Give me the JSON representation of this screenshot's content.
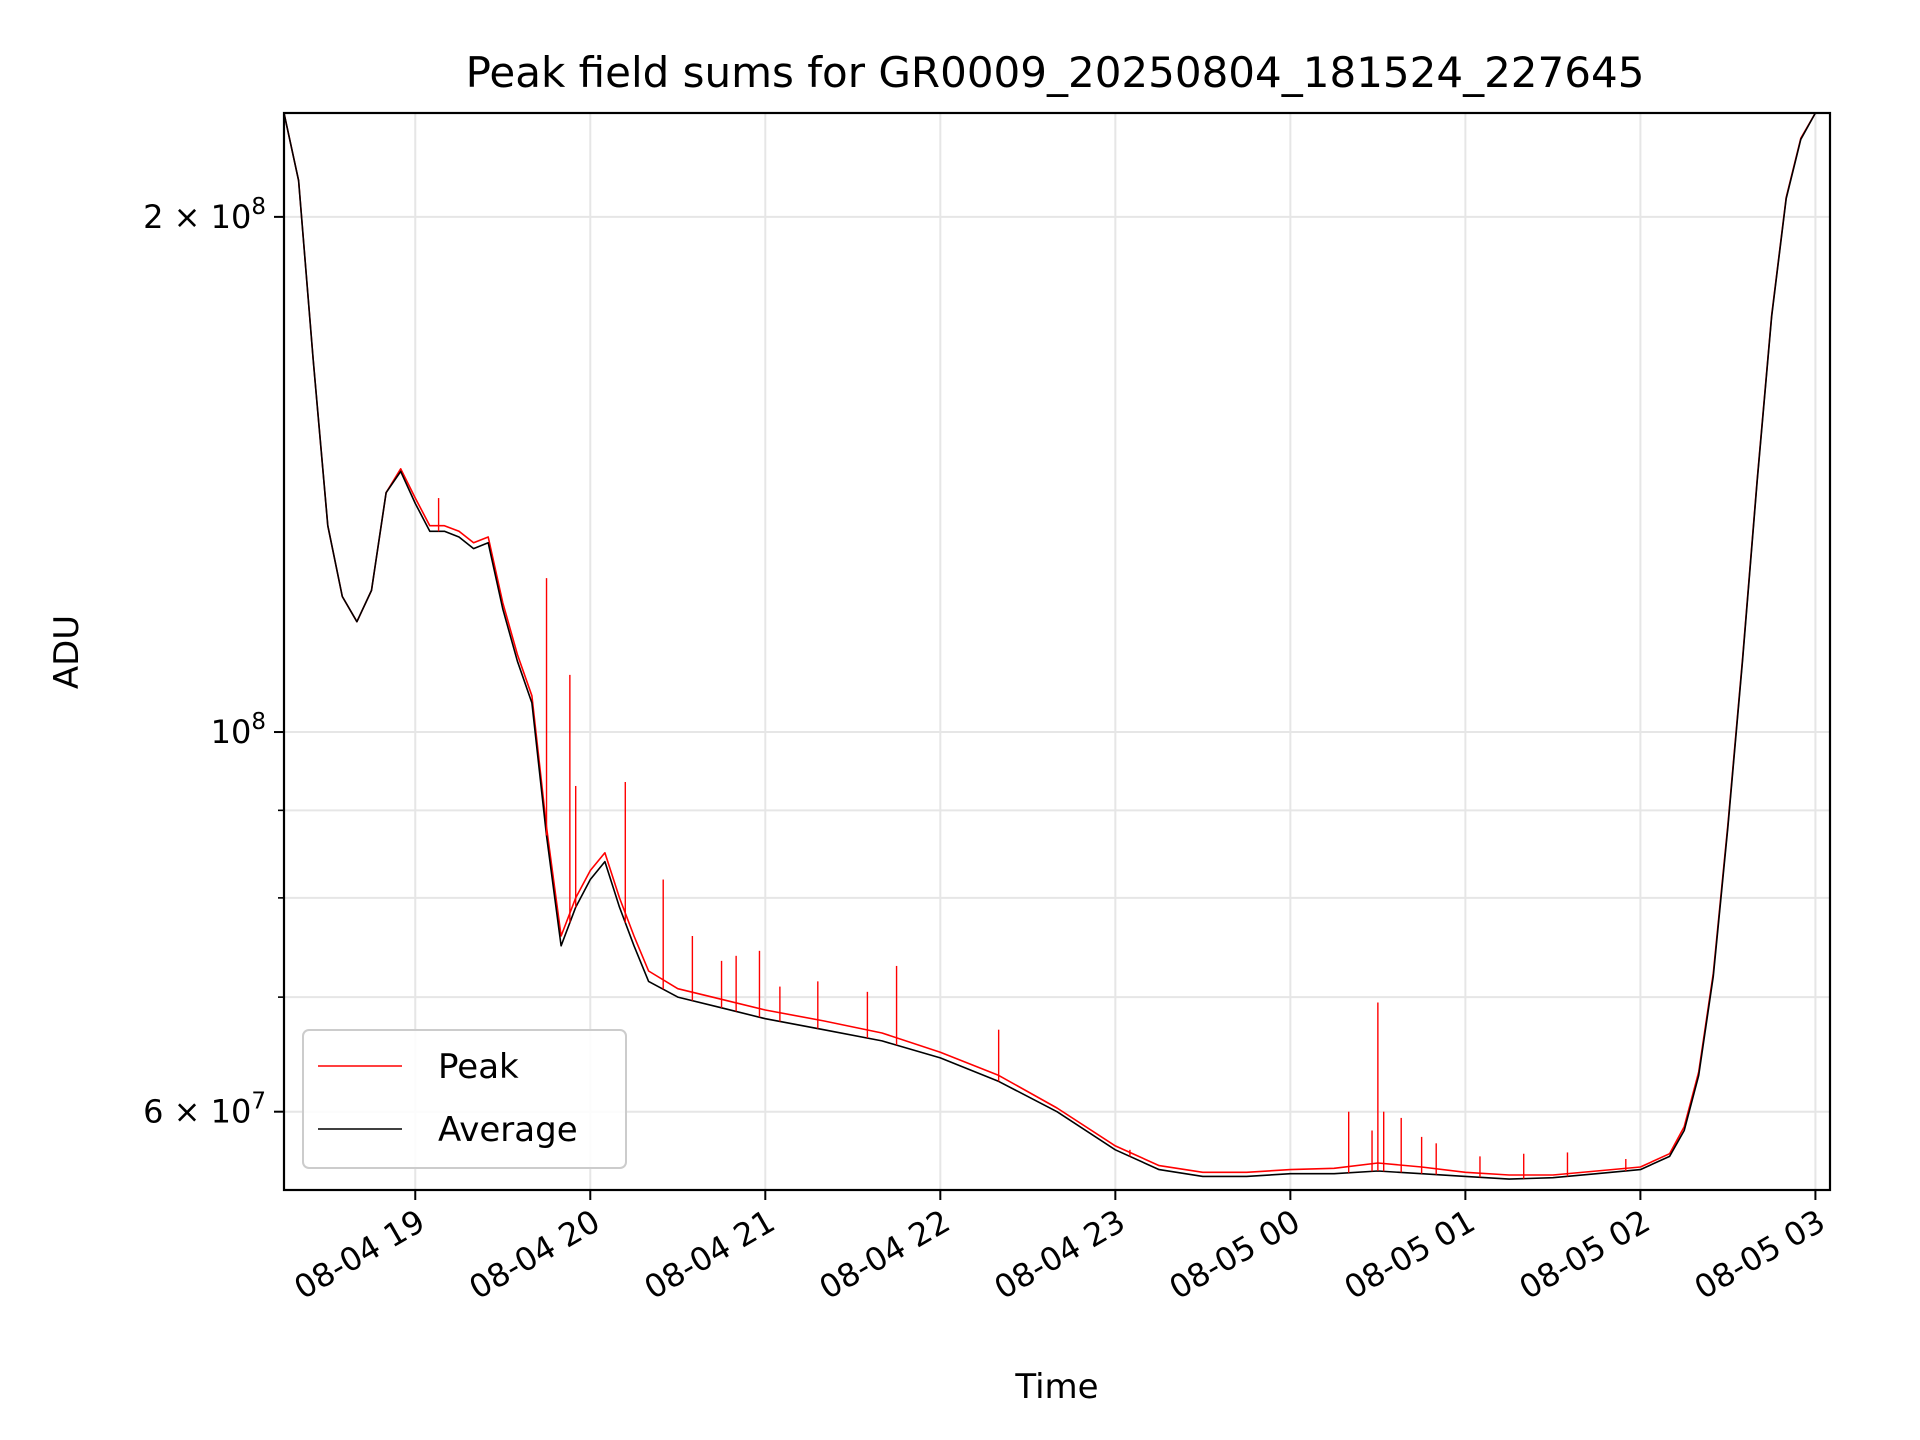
{
  "chart_data": {
    "type": "line",
    "title": "Peak field sums for GR0009_20250804_181524_227645",
    "xlabel": "Time",
    "ylabel": "ADU",
    "y_scale": "log",
    "grid": true,
    "legend_position": "lower-left",
    "xlim": [
      "2025-08-04 18:15",
      "2025-08-05 03:05"
    ],
    "ylim": [
      54000000,
      230000000
    ],
    "x_ticks": [
      {
        "t": "2025-08-04 19:00",
        "label": "08-04 19"
      },
      {
        "t": "2025-08-04 20:00",
        "label": "08-04 20"
      },
      {
        "t": "2025-08-04 21:00",
        "label": "08-04 21"
      },
      {
        "t": "2025-08-04 22:00",
        "label": "08-04 22"
      },
      {
        "t": "2025-08-04 23:00",
        "label": "08-04 23"
      },
      {
        "t": "2025-08-05 00:00",
        "label": "08-05 00"
      },
      {
        "t": "2025-08-05 01:00",
        "label": "08-05 01"
      },
      {
        "t": "2025-08-05 02:00",
        "label": "08-05 02"
      },
      {
        "t": "2025-08-05 03:00",
        "label": "08-05 03"
      }
    ],
    "y_ticks_major": [
      {
        "value": 60000000,
        "label": "6 × 10",
        "exp": "7"
      },
      {
        "value": 100000000,
        "label": "10",
        "exp": "8"
      },
      {
        "value": 200000000,
        "label": "2 × 10",
        "exp": "8"
      }
    ],
    "y_ticks_minor": [
      70000000,
      80000000,
      90000000
    ],
    "colors": {
      "Peak": "#ff0000",
      "Average": "#000000"
    },
    "series": [
      {
        "name": "Average",
        "x": [
          "2025-08-04 18:15",
          "2025-08-04 18:20",
          "2025-08-04 18:25",
          "2025-08-04 18:30",
          "2025-08-04 18:35",
          "2025-08-04 18:40",
          "2025-08-04 18:45",
          "2025-08-04 18:50",
          "2025-08-04 18:55",
          "2025-08-04 19:00",
          "2025-08-04 19:05",
          "2025-08-04 19:10",
          "2025-08-04 19:15",
          "2025-08-04 19:20",
          "2025-08-04 19:25",
          "2025-08-04 19:30",
          "2025-08-04 19:35",
          "2025-08-04 19:40",
          "2025-08-04 19:45",
          "2025-08-04 19:50",
          "2025-08-04 19:55",
          "2025-08-04 20:00",
          "2025-08-04 20:05",
          "2025-08-04 20:10",
          "2025-08-04 20:15",
          "2025-08-04 20:20",
          "2025-08-04 20:30",
          "2025-08-04 20:45",
          "2025-08-04 21:00",
          "2025-08-04 21:20",
          "2025-08-04 21:40",
          "2025-08-04 22:00",
          "2025-08-04 22:20",
          "2025-08-04 22:40",
          "2025-08-04 23:00",
          "2025-08-04 23:15",
          "2025-08-04 23:30",
          "2025-08-04 23:45",
          "2025-08-05 00:00",
          "2025-08-05 00:15",
          "2025-08-05 00:30",
          "2025-08-05 00:45",
          "2025-08-05 01:00",
          "2025-08-05 01:15",
          "2025-08-05 01:30",
          "2025-08-05 01:45",
          "2025-08-05 02:00",
          "2025-08-05 02:10",
          "2025-08-05 02:15",
          "2025-08-05 02:20",
          "2025-08-05 02:25",
          "2025-08-05 02:30",
          "2025-08-05 02:35",
          "2025-08-05 02:40",
          "2025-08-05 02:45",
          "2025-08-05 02:50",
          "2025-08-05 02:55",
          "2025-08-05 03:00"
        ],
        "y": [
          230000000,
          210000000,
          165000000,
          132000000,
          120000000,
          116000000,
          121000000,
          138000000,
          142000000,
          136000000,
          131000000,
          131000000,
          130000000,
          128000000,
          129000000,
          118000000,
          110000000,
          104000000,
          87000000,
          75000000,
          79000000,
          82000000,
          84000000,
          79000000,
          75000000,
          71500000,
          70000000,
          69000000,
          68000000,
          67000000,
          66000000,
          64500000,
          62500000,
          60000000,
          57000000,
          55500000,
          55000000,
          55000000,
          55200000,
          55200000,
          55400000,
          55200000,
          55000000,
          54800000,
          54900000,
          55200000,
          55500000,
          56500000,
          58500000,
          63000000,
          72000000,
          88000000,
          110000000,
          140000000,
          175000000,
          205000000,
          222000000,
          230000000
        ]
      },
      {
        "name": "Peak",
        "x": [
          "2025-08-04 18:15",
          "2025-08-04 18:20",
          "2025-08-04 18:25",
          "2025-08-04 18:30",
          "2025-08-04 18:35",
          "2025-08-04 18:40",
          "2025-08-04 18:45",
          "2025-08-04 18:50",
          "2025-08-04 18:55",
          "2025-08-04 19:00",
          "2025-08-04 19:05",
          "2025-08-04 19:10",
          "2025-08-04 19:15",
          "2025-08-04 19:20",
          "2025-08-04 19:25",
          "2025-08-04 19:30",
          "2025-08-04 19:35",
          "2025-08-04 19:40",
          "2025-08-04 19:45",
          "2025-08-04 19:50",
          "2025-08-04 19:55",
          "2025-08-04 20:00",
          "2025-08-04 20:05",
          "2025-08-04 20:10",
          "2025-08-04 20:15",
          "2025-08-04 20:20",
          "2025-08-04 20:30",
          "2025-08-04 20:45",
          "2025-08-04 21:00",
          "2025-08-04 21:20",
          "2025-08-04 21:40",
          "2025-08-04 22:00",
          "2025-08-04 22:20",
          "2025-08-04 22:40",
          "2025-08-04 23:00",
          "2025-08-04 23:15",
          "2025-08-04 23:30",
          "2025-08-04 23:45",
          "2025-08-05 00:00",
          "2025-08-05 00:15",
          "2025-08-05 00:30",
          "2025-08-05 00:45",
          "2025-08-05 01:00",
          "2025-08-05 01:15",
          "2025-08-05 01:30",
          "2025-08-05 01:45",
          "2025-08-05 02:00",
          "2025-08-05 02:10",
          "2025-08-05 02:15",
          "2025-08-05 02:20",
          "2025-08-05 02:25",
          "2025-08-05 02:30",
          "2025-08-05 02:35",
          "2025-08-05 02:40",
          "2025-08-05 02:45",
          "2025-08-05 02:50",
          "2025-08-05 02:55",
          "2025-08-05 03:00"
        ],
        "y": [
          230000000,
          210000000,
          165000000,
          132000000,
          120000000,
          116000000,
          121000000,
          138000000,
          142500000,
          137000000,
          132000000,
          132000000,
          131000000,
          129000000,
          130000000,
          119000000,
          111000000,
          105000000,
          88000000,
          76000000,
          80000000,
          83000000,
          85000000,
          80000000,
          76000000,
          72500000,
          70800000,
          69800000,
          68800000,
          67800000,
          66700000,
          65000000,
          63000000,
          60300000,
          57300000,
          55800000,
          55300000,
          55300000,
          55500000,
          55600000,
          56000000,
          55700000,
          55300000,
          55100000,
          55100000,
          55400000,
          55700000,
          56700000,
          58800000,
          63300000,
          72300000,
          88300000,
          110300000,
          140300000,
          175300000,
          205300000,
          222300000,
          230000000
        ]
      }
    ],
    "peak_spikes": [
      {
        "t": "2025-08-04 19:08",
        "y": 137000000
      },
      {
        "t": "2025-08-04 19:45",
        "y": 123000000
      },
      {
        "t": "2025-08-04 19:53",
        "y": 108000000
      },
      {
        "t": "2025-08-04 19:55",
        "y": 93000000
      },
      {
        "t": "2025-08-04 20:12",
        "y": 93500000
      },
      {
        "t": "2025-08-04 20:25",
        "y": 82000000
      },
      {
        "t": "2025-08-04 20:35",
        "y": 76000000
      },
      {
        "t": "2025-08-04 20:45",
        "y": 73500000
      },
      {
        "t": "2025-08-04 20:50",
        "y": 74000000
      },
      {
        "t": "2025-08-04 20:58",
        "y": 74500000
      },
      {
        "t": "2025-08-04 21:05",
        "y": 71000000
      },
      {
        "t": "2025-08-04 21:18",
        "y": 71500000
      },
      {
        "t": "2025-08-04 21:35",
        "y": 70500000
      },
      {
        "t": "2025-08-04 21:45",
        "y": 73000000
      },
      {
        "t": "2025-08-04 22:20",
        "y": 67000000
      },
      {
        "t": "2025-08-04 23:05",
        "y": 57000000
      },
      {
        "t": "2025-08-05 00:20",
        "y": 60000000
      },
      {
        "t": "2025-08-05 00:28",
        "y": 58500000
      },
      {
        "t": "2025-08-05 00:30",
        "y": 69500000
      },
      {
        "t": "2025-08-05 00:32",
        "y": 60000000
      },
      {
        "t": "2025-08-05 00:38",
        "y": 59500000
      },
      {
        "t": "2025-08-05 00:45",
        "y": 58000000
      },
      {
        "t": "2025-08-05 00:50",
        "y": 57500000
      },
      {
        "t": "2025-08-05 01:05",
        "y": 56500000
      },
      {
        "t": "2025-08-05 01:20",
        "y": 56700000
      },
      {
        "t": "2025-08-05 01:35",
        "y": 56800000
      },
      {
        "t": "2025-08-05 01:55",
        "y": 56300000
      }
    ]
  }
}
